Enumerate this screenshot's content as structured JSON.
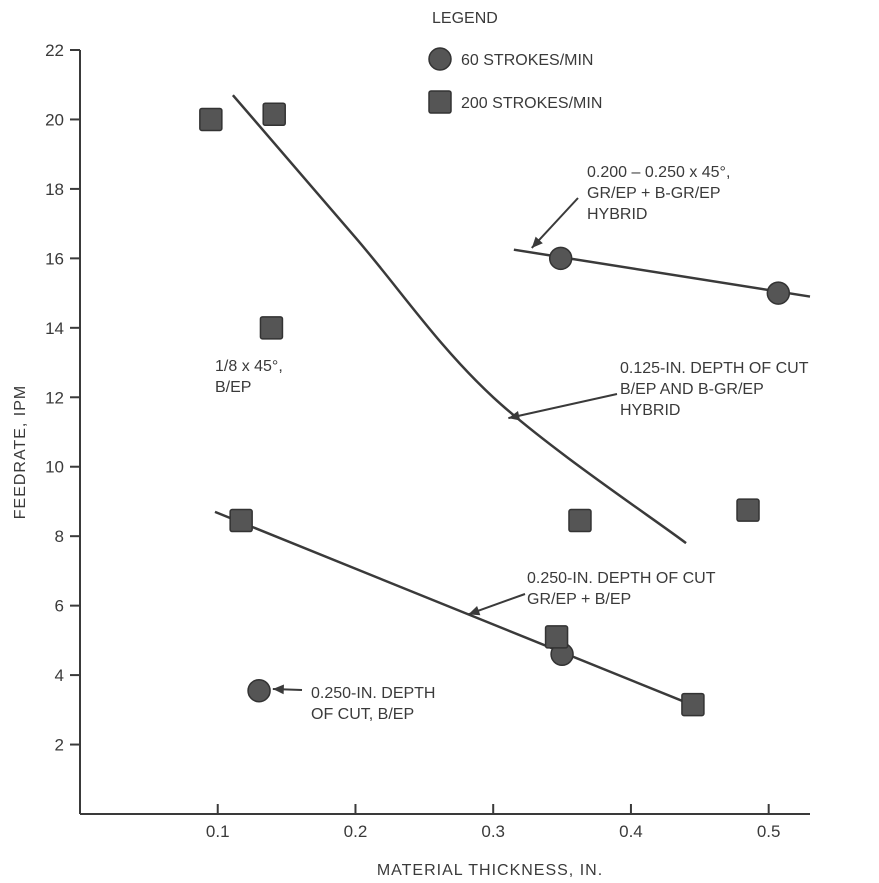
{
  "chart_data": {
    "type": "scatter",
    "xlabel": "MATERIAL THICKNESS, IN.",
    "ylabel": "FEEDRATE, IPM",
    "xlim": [
      0.0,
      0.53
    ],
    "ylim": [
      0,
      22
    ],
    "xticks": [
      0.1,
      0.2,
      0.3,
      0.4,
      0.5
    ],
    "xtick_labels": [
      "0.1",
      "0.2",
      "0.3",
      "0.4",
      "0.5"
    ],
    "yticks": [
      2,
      4,
      6,
      8,
      10,
      12,
      14,
      16,
      18,
      20,
      22
    ],
    "ytick_labels": [
      "2",
      "4",
      "6",
      "8",
      "10",
      "12",
      "14",
      "16",
      "18",
      "20",
      "22"
    ],
    "grid": false,
    "legend": {
      "title": "LEGEND",
      "position": "top-center",
      "entries": [
        {
          "label": "60 STROKES/MIN",
          "marker": "circle"
        },
        {
          "label": "200 STROKES/MIN",
          "marker": "square"
        }
      ]
    },
    "series": [
      {
        "name": "60 STROKES/MIN",
        "marker": "circle",
        "points": [
          {
            "x": 0.349,
            "y": 16.0
          },
          {
            "x": 0.507,
            "y": 15.0
          },
          {
            "x": 0.35,
            "y": 4.6
          },
          {
            "x": 0.13,
            "y": 3.55
          }
        ]
      },
      {
        "name": "200 STROKES/MIN",
        "marker": "square",
        "points": [
          {
            "x": 0.095,
            "y": 20.0
          },
          {
            "x": 0.141,
            "y": 20.15
          },
          {
            "x": 0.139,
            "y": 14.0
          },
          {
            "x": 0.117,
            "y": 8.45
          },
          {
            "x": 0.363,
            "y": 8.45
          },
          {
            "x": 0.485,
            "y": 8.75
          },
          {
            "x": 0.346,
            "y": 5.1
          },
          {
            "x": 0.445,
            "y": 3.15
          }
        ]
      }
    ],
    "fit_lines": [
      {
        "id": "hybrid-45",
        "points": [
          [
            0.315,
            16.25
          ],
          [
            0.53,
            14.9
          ]
        ]
      },
      {
        "id": "depth-0125",
        "curve": true,
        "points": [
          [
            0.111,
            20.7
          ],
          [
            0.2,
            16.6
          ],
          [
            0.3,
            12.0
          ],
          [
            0.44,
            7.8
          ]
        ]
      },
      {
        "id": "depth-0250",
        "points": [
          [
            0.098,
            8.7
          ],
          [
            0.447,
            3.1
          ]
        ]
      }
    ],
    "annotations": [
      {
        "id": "hybrid-45",
        "lines": [
          "0.200 – 0.250 x 45°,",
          "GR/EP + B-GR/EP",
          "HYBRID"
        ],
        "arrow_to": [
          0.328,
          16.3
        ]
      },
      {
        "id": "depth-0125",
        "lines": [
          "0.125-IN. DEPTH OF CUT",
          "B/EP AND B-GR/EP",
          "HYBRID"
        ],
        "arrow_to": [
          0.311,
          11.4
        ]
      },
      {
        "id": "depth-0250",
        "lines": [
          "0.250-IN. DEPTH OF CUT",
          "GR/EP + B/EP"
        ],
        "arrow_to": [
          0.282,
          5.75
        ]
      },
      {
        "id": "one-eighth",
        "lines": [
          "1/8 x 45°,",
          "B/EP"
        ],
        "arrow_to": null
      },
      {
        "id": "depth-0250-bep",
        "lines": [
          "0.250-IN. DEPTH",
          "OF CUT, B/EP"
        ],
        "arrow_to": [
          0.14,
          3.6
        ]
      }
    ]
  }
}
